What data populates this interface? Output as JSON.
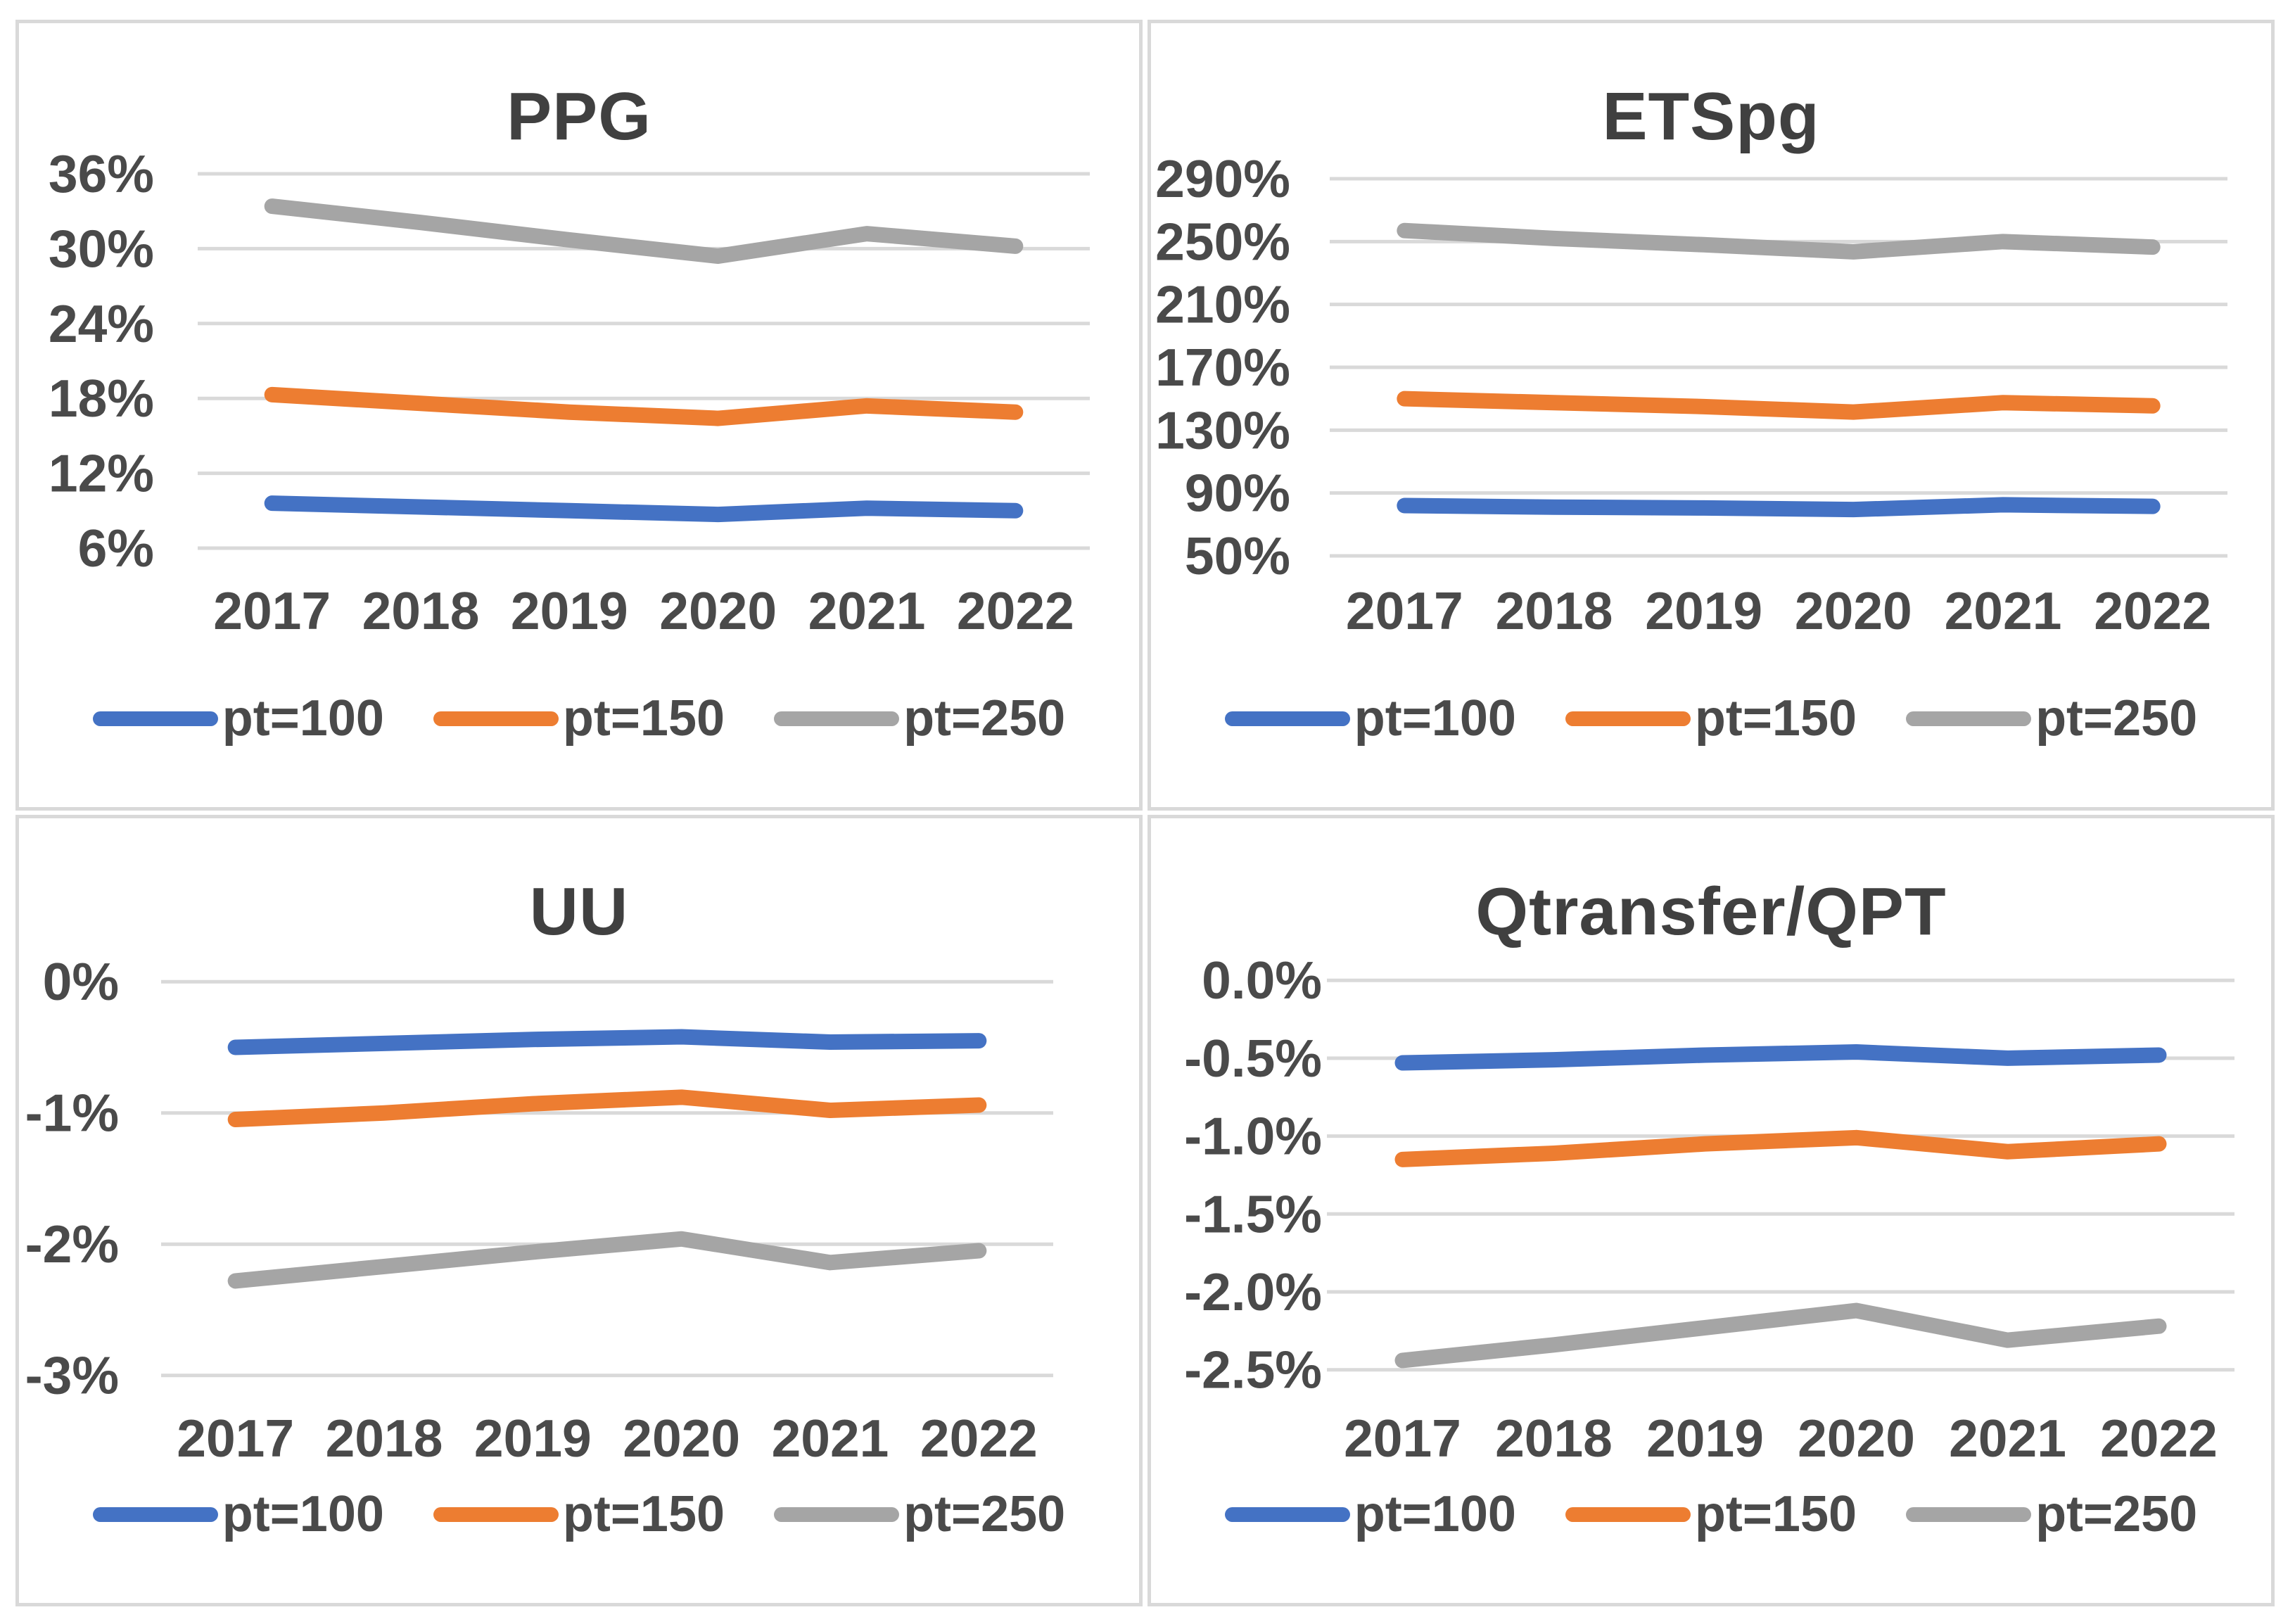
{
  "colors": {
    "series_blue": "#4472C4",
    "series_orange": "#ED7D31",
    "series_gray": "#A5A5A5",
    "gridline": "#D9D9D9",
    "panel_border": "#D9D9D9",
    "tick_text": "#4a4a4a",
    "title_text": "#404040"
  },
  "chart_data": [
    {
      "type": "line",
      "title": "PPG",
      "xlabel": "",
      "ylabel": "",
      "grid": true,
      "legend_position": "bottom",
      "categories": [
        "2017",
        "2018",
        "2019",
        "2020",
        "2021",
        "2022"
      ],
      "y_ticks": [
        {
          "label": "36%",
          "value": 36
        },
        {
          "label": "30%",
          "value": 30
        },
        {
          "label": "24%",
          "value": 24
        },
        {
          "label": "18%",
          "value": 18
        },
        {
          "label": "12%",
          "value": 12
        },
        {
          "label": "6%",
          "value": 6
        }
      ],
      "ylim": [
        6,
        36
      ],
      "series": [
        {
          "name": "pt=100",
          "color": "#4472C4",
          "values": [
            9.6,
            9.3,
            9.0,
            8.7,
            9.2,
            9.0
          ]
        },
        {
          "name": "pt=150",
          "color": "#ED7D31",
          "values": [
            18.3,
            17.6,
            16.9,
            16.4,
            17.4,
            16.9
          ]
        },
        {
          "name": "pt=250",
          "color": "#A5A5A5",
          "values": [
            33.4,
            32.1,
            30.7,
            29.4,
            31.2,
            30.2
          ]
        }
      ]
    },
    {
      "type": "line",
      "title": "ETSpg",
      "xlabel": "",
      "ylabel": "",
      "grid": true,
      "legend_position": "bottom",
      "categories": [
        "2017",
        "2018",
        "2019",
        "2020",
        "2021",
        "2022"
      ],
      "y_ticks": [
        {
          "label": "290%",
          "value": 290
        },
        {
          "label": "250%",
          "value": 250
        },
        {
          "label": "210%",
          "value": 210
        },
        {
          "label": "170%",
          "value": 170
        },
        {
          "label": "130%",
          "value": 130
        },
        {
          "label": "90%",
          "value": 90
        },
        {
          "label": "50%",
          "value": 50
        }
      ],
      "ylim": [
        50,
        290
      ],
      "series": [
        {
          "name": "pt=100",
          "color": "#4472C4",
          "values": [
            82,
            81,
            80.5,
            79.5,
            82.5,
            81.5
          ]
        },
        {
          "name": "pt=150",
          "color": "#ED7D31",
          "values": [
            150,
            147.5,
            145,
            141.5,
            147.5,
            145.5
          ]
        },
        {
          "name": "pt=250",
          "color": "#A5A5A5",
          "values": [
            257,
            252,
            248,
            243.5,
            250,
            246.5
          ]
        }
      ]
    },
    {
      "type": "line",
      "title": "UU",
      "xlabel": "",
      "ylabel": "",
      "grid": true,
      "legend_position": "bottom",
      "categories": [
        "2017",
        "2018",
        "2019",
        "2020",
        "2021",
        "2022"
      ],
      "y_ticks": [
        {
          "label": "0%",
          "value": 0
        },
        {
          "label": "-1%",
          "value": -1
        },
        {
          "label": "-2%",
          "value": -2
        },
        {
          "label": "-3%",
          "value": -3
        }
      ],
      "ylim": [
        -3,
        0
      ],
      "series": [
        {
          "name": "pt=100",
          "color": "#4472C4",
          "values": [
            -0.5,
            -0.47,
            -0.44,
            -0.42,
            -0.46,
            -0.45
          ]
        },
        {
          "name": "pt=150",
          "color": "#ED7D31",
          "values": [
            -1.05,
            -1.0,
            -0.93,
            -0.88,
            -0.98,
            -0.94
          ]
        },
        {
          "name": "pt=250",
          "color": "#A5A5A5",
          "values": [
            -2.28,
            -2.17,
            -2.06,
            -1.96,
            -2.14,
            -2.05
          ]
        }
      ]
    },
    {
      "type": "line",
      "title": "Qtransfer/QPT",
      "xlabel": "",
      "ylabel": "",
      "grid": true,
      "legend_position": "bottom",
      "categories": [
        "2017",
        "2018",
        "2019",
        "2020",
        "2021",
        "2022"
      ],
      "y_ticks": [
        {
          "label": "0.0%",
          "value": 0.0
        },
        {
          "label": "-0.5%",
          "value": -0.5
        },
        {
          "label": "-1.0%",
          "value": -1.0
        },
        {
          "label": "-1.5%",
          "value": -1.5
        },
        {
          "label": "-2.0%",
          "value": -2.0
        },
        {
          "label": "-2.5%",
          "value": -2.5
        }
      ],
      "ylim": [
        -2.5,
        0
      ],
      "series": [
        {
          "name": "pt=100",
          "color": "#4472C4",
          "values": [
            -0.53,
            -0.51,
            -0.48,
            -0.46,
            -0.5,
            -0.48
          ]
        },
        {
          "name": "pt=150",
          "color": "#ED7D31",
          "values": [
            -1.15,
            -1.11,
            -1.05,
            -1.01,
            -1.1,
            -1.05
          ]
        },
        {
          "name": "pt=250",
          "color": "#A5A5A5",
          "values": [
            -2.44,
            -2.34,
            -2.23,
            -2.12,
            -2.31,
            -2.22
          ]
        }
      ]
    }
  ]
}
